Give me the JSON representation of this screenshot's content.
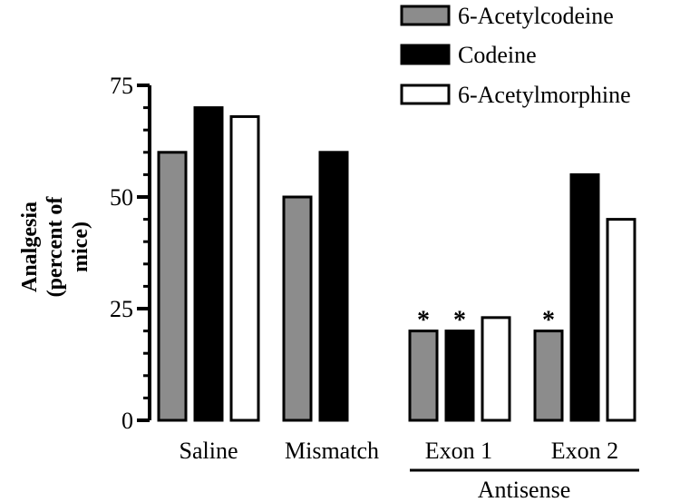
{
  "chart_data": {
    "type": "bar",
    "categories": [
      "Saline",
      "Mismatch",
      "Exon 1",
      "Exon 2"
    ],
    "series": [
      {
        "name": "6-Acetylcodeine",
        "values": [
          60,
          50,
          20,
          20
        ],
        "color": "#8c8c8c"
      },
      {
        "name": "Codeine",
        "values": [
          70,
          60,
          20,
          55
        ],
        "color": "#000000"
      },
      {
        "name": "6-Acetylmorphine",
        "values": [
          68,
          null,
          23,
          45
        ],
        "color": "#ffffff"
      }
    ],
    "significance_marker": "*",
    "significant": [
      {
        "category": 2,
        "series": 0
      },
      {
        "category": 2,
        "series": 1
      },
      {
        "category": 3,
        "series": 0
      }
    ],
    "ylabel_lines": [
      "Analgesia",
      "(percent of",
      "mice)"
    ],
    "ylim": [
      0,
      75
    ],
    "yticks": [
      "0",
      "25",
      "50",
      "75"
    ],
    "group_label": {
      "text": "Antisense",
      "categories": [
        2,
        3
      ]
    },
    "legend_position": "top-right"
  }
}
